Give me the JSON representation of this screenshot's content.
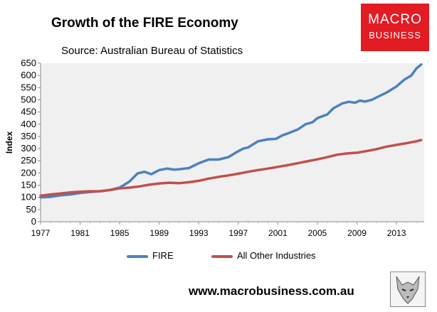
{
  "header": {
    "title": "Growth of the FIRE Economy",
    "subtitle": "Source: Australian Bureau of Statistics"
  },
  "logo": {
    "line1": "MACRO",
    "line2": "BUSINESS",
    "color": "#e31b23"
  },
  "footer": {
    "url": "www.macrobusiness.com.au"
  },
  "chart_data": {
    "type": "line",
    "title": "Growth of the FIRE Economy",
    "subtitle": "Source: Australian Bureau of Statistics",
    "xlabel": "",
    "ylabel": "Index",
    "xlim": [
      1977,
      2015.8
    ],
    "ylim": [
      0,
      650
    ],
    "x_ticks": [
      "1977",
      "1981",
      "1985",
      "1989",
      "1993",
      "1997",
      "2001",
      "2005",
      "2009",
      "2013"
    ],
    "y_ticks": [
      "0",
      "50",
      "100",
      "150",
      "200",
      "250",
      "300",
      "350",
      "400",
      "450",
      "500",
      "550",
      "600",
      "650"
    ],
    "grid": false,
    "legend_position": "bottom",
    "background": "#f0f0f0",
    "series": [
      {
        "name": "FIRE",
        "color": "#4f81bd",
        "points": [
          [
            1977,
            100
          ],
          [
            1978,
            102
          ],
          [
            1979,
            108
          ],
          [
            1980,
            112
          ],
          [
            1981,
            118
          ],
          [
            1982,
            122
          ],
          [
            1983,
            125
          ],
          [
            1984,
            130
          ],
          [
            1985,
            140
          ],
          [
            1986,
            165
          ],
          [
            1986.8,
            198
          ],
          [
            1987.5,
            205
          ],
          [
            1988.2,
            195
          ],
          [
            1989,
            212
          ],
          [
            1989.8,
            218
          ],
          [
            1990.5,
            214
          ],
          [
            1991,
            215
          ],
          [
            1992,
            220
          ],
          [
            1993,
            240
          ],
          [
            1994,
            255
          ],
          [
            1995,
            255
          ],
          [
            1996,
            265
          ],
          [
            1996.8,
            285
          ],
          [
            1997.5,
            300
          ],
          [
            1998,
            305
          ],
          [
            1999,
            330
          ],
          [
            2000,
            338
          ],
          [
            2000.8,
            340
          ],
          [
            2001.5,
            355
          ],
          [
            2002,
            362
          ],
          [
            2003,
            378
          ],
          [
            2003.8,
            400
          ],
          [
            2004.5,
            408
          ],
          [
            2005,
            425
          ],
          [
            2006,
            440
          ],
          [
            2006.6,
            465
          ],
          [
            2007.5,
            485
          ],
          [
            2008.2,
            492
          ],
          [
            2008.8,
            488
          ],
          [
            2009.3,
            497
          ],
          [
            2009.8,
            493
          ],
          [
            2010.5,
            500
          ],
          [
            2011,
            510
          ],
          [
            2012,
            530
          ],
          [
            2013,
            555
          ],
          [
            2013.8,
            583
          ],
          [
            2014.5,
            600
          ],
          [
            2015,
            628
          ],
          [
            2015.5,
            645
          ]
        ]
      },
      {
        "name": "All Other Industries",
        "color": "#c0504d",
        "points": [
          [
            1977,
            107
          ],
          [
            1978,
            112
          ],
          [
            1979,
            116
          ],
          [
            1980,
            120
          ],
          [
            1981,
            123
          ],
          [
            1982,
            125
          ],
          [
            1983,
            125
          ],
          [
            1984,
            130
          ],
          [
            1985,
            137
          ],
          [
            1986,
            140
          ],
          [
            1987,
            145
          ],
          [
            1988,
            152
          ],
          [
            1989,
            157
          ],
          [
            1990,
            160
          ],
          [
            1991,
            158
          ],
          [
            1992,
            162
          ],
          [
            1993,
            168
          ],
          [
            1994,
            177
          ],
          [
            1995,
            184
          ],
          [
            1996,
            190
          ],
          [
            1997,
            197
          ],
          [
            1998,
            205
          ],
          [
            1999,
            212
          ],
          [
            2000,
            218
          ],
          [
            2001,
            225
          ],
          [
            2002,
            232
          ],
          [
            2003,
            240
          ],
          [
            2004,
            248
          ],
          [
            2005,
            256
          ],
          [
            2006,
            265
          ],
          [
            2007,
            275
          ],
          [
            2008,
            280
          ],
          [
            2009,
            283
          ],
          [
            2010,
            290
          ],
          [
            2011,
            298
          ],
          [
            2012,
            308
          ],
          [
            2013,
            315
          ],
          [
            2014,
            322
          ],
          [
            2015,
            330
          ],
          [
            2015.5,
            335
          ]
        ]
      }
    ]
  }
}
